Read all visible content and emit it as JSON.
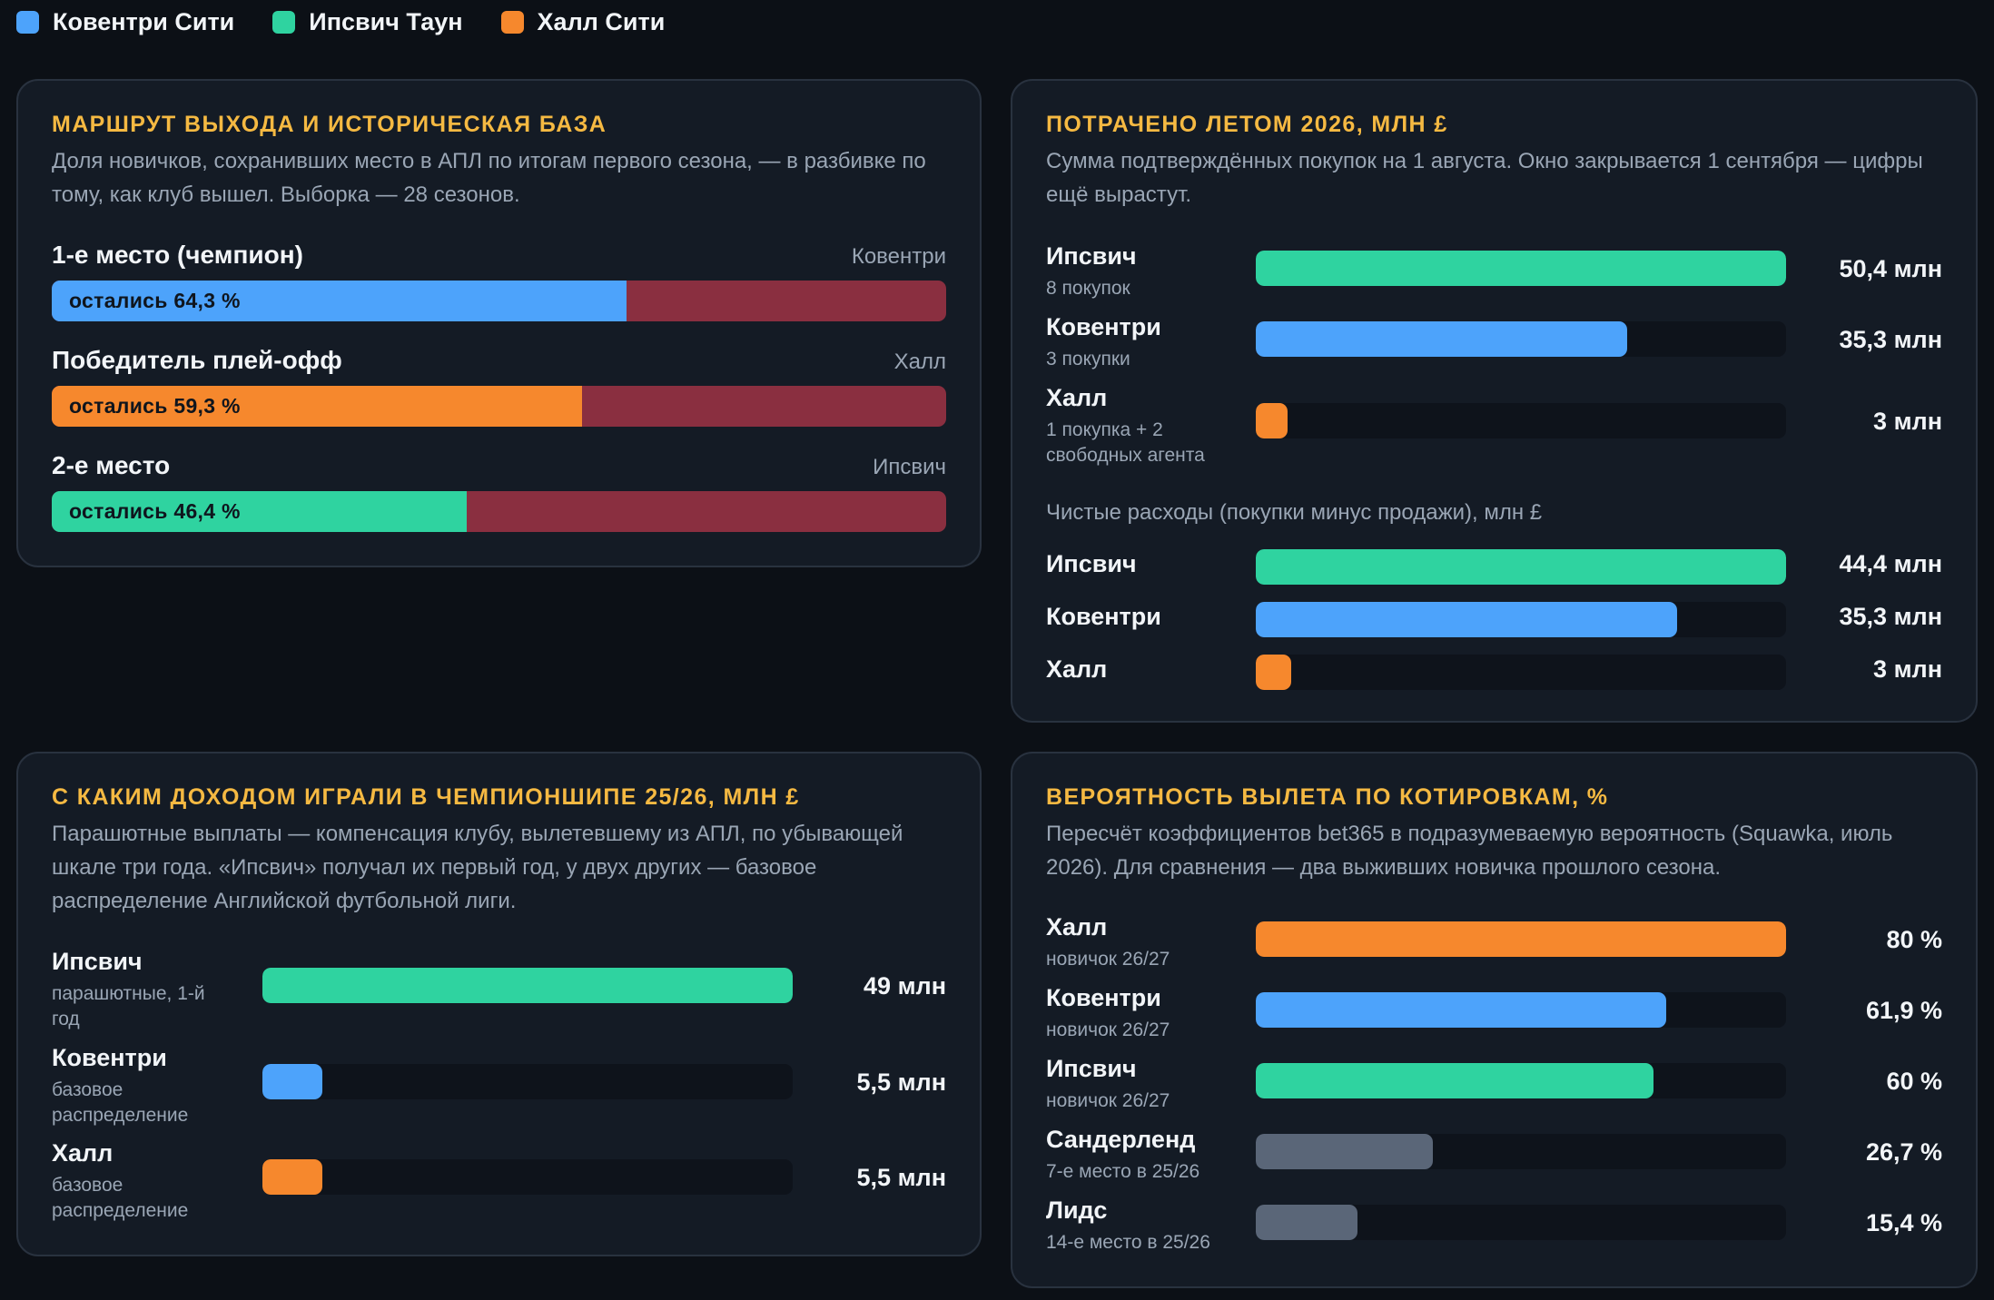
{
  "colors": {
    "coventry": "#4da3fb",
    "ipswich": "#2fd3a0",
    "hull": "#f6882d",
    "other": "#5a6678",
    "relegated": "#8a2f40",
    "title": "#f5b942"
  },
  "legend": [
    {
      "label": "Ковентри Сити",
      "color": "#4da3fb"
    },
    {
      "label": "Ипсвич Таун",
      "color": "#2fd3a0"
    },
    {
      "label": "Халл Сити",
      "color": "#f6882d"
    }
  ],
  "route": {
    "title": "МАРШРУТ ВЫХОДА И ИСТОРИЧЕСКАЯ БАЗА",
    "subtitle": "Доля новичков, сохранивших место в АПЛ по итогам первого сезона, — в разбивке по тому, как клуб вышел. Выборка — 28 сезонов.",
    "rows": [
      {
        "label": "1-е место (чемпион)",
        "club": "Ковентри",
        "text": "остались 64,3 %"
      },
      {
        "label": "Победитель плей-офф",
        "club": "Халл",
        "text": "остались 59,3 %"
      },
      {
        "label": "2-е место",
        "club": "Ипсвич",
        "text": "остались 46,4 %"
      }
    ]
  },
  "spent": {
    "title": "ПОТРАЧЕНО ЛЕТОМ 2026, МЛН £",
    "subtitle": "Сумма подтверждённых покупок на 1 августа. Окно закрывается 1 сентября — цифры ещё вырастут.",
    "rows": [
      {
        "name": "Ипсвич",
        "note": "8 покупок",
        "value": "50,4 млн"
      },
      {
        "name": "Ковентри",
        "note": "3 покупки",
        "value": "35,3 млн"
      },
      {
        "name": "Халл",
        "note": "1 покупка + 2 свободных агента",
        "value": "3 млн"
      }
    ],
    "net_label": "Чистые расходы (покупки минус продажи), млн £",
    "net_rows": [
      {
        "name": "Ипсвич",
        "value": "44,4 млн"
      },
      {
        "name": "Ковентри",
        "value": "35,3 млн"
      },
      {
        "name": "Халл",
        "value": "3 млн"
      }
    ]
  },
  "income": {
    "title": "С КАКИМ ДОХОДОМ ИГРАЛИ В ЧЕМПИОНШИПЕ 25/26, МЛН £",
    "subtitle": "Парашютные выплаты — компенсация клубу, вылетевшему из АПЛ, по убывающей шкале три года. «Ипсвич» получал их первый год, у двух других — базовое распределение Английской футбольной лиги.",
    "rows": [
      {
        "name": "Ипсвич",
        "note": "парашютные, 1-й год",
        "value": "49 млн"
      },
      {
        "name": "Ковентри",
        "note": "базовое распределение",
        "value": "5,5 млн"
      },
      {
        "name": "Халл",
        "note": "базовое распределение",
        "value": "5,5 млн"
      }
    ]
  },
  "odds": {
    "title": "ВЕРОЯТНОСТЬ ВЫЛЕТА ПО КОТИРОВКАМ, %",
    "subtitle": "Пересчёт коэффициентов bet365 в подразумеваемую вероятность (Squawka, июль 2026). Для сравнения — два выживших новичка прошлого сезона.",
    "rows": [
      {
        "name": "Халл",
        "note": "новичок 26/27",
        "value": "80 %"
      },
      {
        "name": "Ковентри",
        "note": "новичок 26/27",
        "value": "61,9 %"
      },
      {
        "name": "Ипсвич",
        "note": "новичок 26/27",
        "value": "60 %"
      },
      {
        "name": "Сандерленд",
        "note": "7-е место в 25/26",
        "value": "26,7 %"
      },
      {
        "name": "Лидс",
        "note": "14-е место в 25/26",
        "value": "15,4 %"
      }
    ]
  },
  "chart_data": [
    {
      "type": "bar",
      "title": "МАРШРУТ ВЫХОДА И ИСТОРИЧЕСКАЯ БАЗА",
      "categories": [
        "1-е место (чемпион)",
        "Победитель плей-офф",
        "2-е место"
      ],
      "values": [
        64.3,
        59.3,
        46.4
      ],
      "clubs": [
        "Ковентри",
        "Халл",
        "Ипсвич"
      ],
      "colors": [
        "#4da3fb",
        "#f6882d",
        "#2fd3a0"
      ],
      "ylim": [
        0,
        100
      ]
    },
    {
      "type": "bar",
      "title": "ПОТРАЧЕНО ЛЕТОМ 2026, МЛН £",
      "categories": [
        "Ипсвич",
        "Ковентри",
        "Халл"
      ],
      "values": [
        50.4,
        35.3,
        3
      ],
      "colors": [
        "#2fd3a0",
        "#4da3fb",
        "#f6882d"
      ],
      "ylim": [
        0,
        50.4
      ]
    },
    {
      "type": "bar",
      "title": "Чистые расходы (покупки минус продажи), млн £",
      "categories": [
        "Ипсвич",
        "Ковентри",
        "Халл"
      ],
      "values": [
        44.4,
        35.3,
        3
      ],
      "colors": [
        "#2fd3a0",
        "#4da3fb",
        "#f6882d"
      ],
      "ylim": [
        0,
        44.4
      ]
    },
    {
      "type": "bar",
      "title": "С КАКИМ ДОХОДОМ ИГРАЛИ В ЧЕМПИОНШИПЕ 25/26, МЛН £",
      "categories": [
        "Ипсвич",
        "Ковентри",
        "Халл"
      ],
      "values": [
        49,
        5.5,
        5.5
      ],
      "colors": [
        "#2fd3a0",
        "#4da3fb",
        "#f6882d"
      ],
      "ylim": [
        0,
        49
      ]
    },
    {
      "type": "bar",
      "title": "ВЕРОЯТНОСТЬ ВЫЛЕТА ПО КОТИРОВКАМ, %",
      "categories": [
        "Халл",
        "Ковентри",
        "Ипсвич",
        "Сандерленд",
        "Лидс"
      ],
      "values": [
        80,
        61.9,
        60,
        26.7,
        15.4
      ],
      "colors": [
        "#f6882d",
        "#4da3fb",
        "#2fd3a0",
        "#5a6678",
        "#5a6678"
      ],
      "ylim": [
        0,
        80
      ]
    }
  ]
}
